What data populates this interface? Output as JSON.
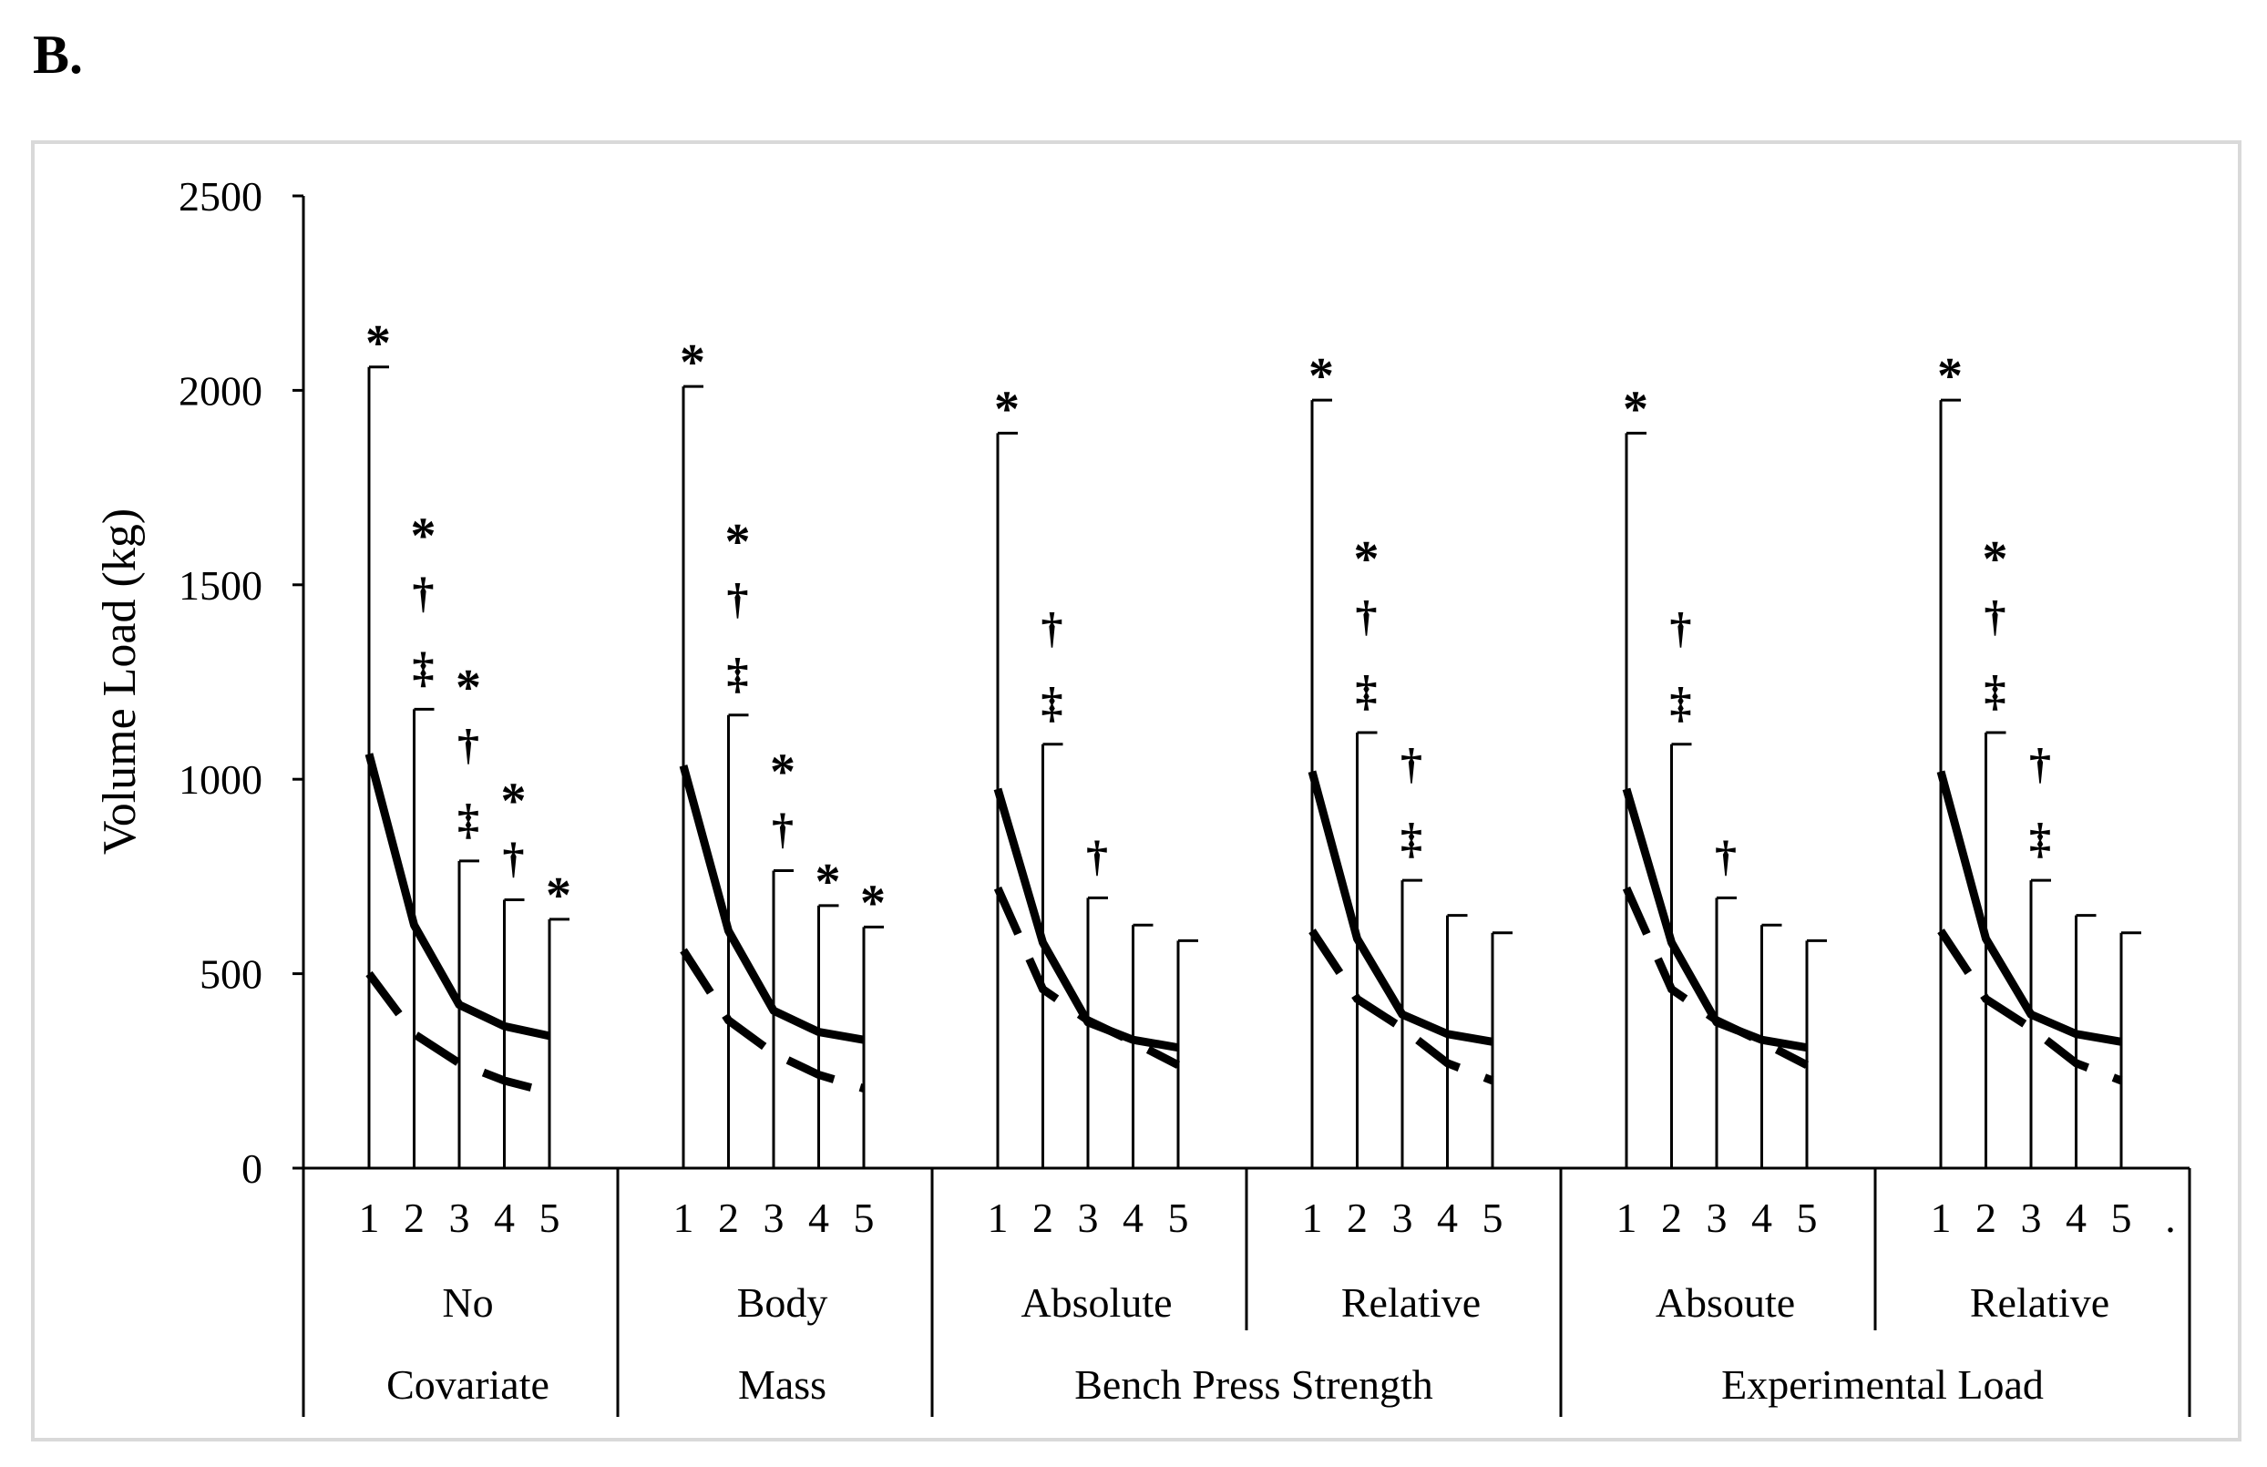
{
  "panel_label": "B.",
  "chart_data": {
    "type": "line",
    "title": "",
    "ylabel": "Volume Load (kg)",
    "xlabel": "",
    "ylim": [
      0,
      2500
    ],
    "yticks": [
      0,
      500,
      1000,
      1500,
      2000,
      2500
    ],
    "sets": [
      "1",
      "2",
      "3",
      "4",
      "5"
    ],
    "trailing_mark": ".",
    "groups": [
      {
        "label": "No",
        "solid": [
          1065,
          625,
          420,
          365,
          340
        ],
        "dashed": [
          500,
          345,
          270,
          225,
          195
        ],
        "sd_upper": [
          2060,
          1180,
          790,
          690,
          640
        ],
        "marks": [
          [
            "*"
          ],
          [
            "*",
            "†",
            "‡"
          ],
          [
            "*",
            "†",
            "‡"
          ],
          [
            "*",
            "†"
          ],
          [
            "*"
          ]
        ]
      },
      {
        "label": "Body",
        "solid": [
          1035,
          610,
          405,
          350,
          330
        ],
        "dashed": [
          560,
          380,
          295,
          240,
          205
        ],
        "sd_upper": [
          2010,
          1165,
          765,
          675,
          620
        ],
        "marks": [
          [
            "*"
          ],
          [
            "*",
            "†",
            "‡"
          ],
          [
            "*",
            "†"
          ],
          [
            "*"
          ],
          [
            "*"
          ]
        ]
      },
      {
        "label": "Absolute",
        "solid": [
          975,
          580,
          375,
          330,
          310
        ],
        "dashed": [
          720,
          460,
          380,
          325,
          265
        ],
        "sd_upper": [
          1890,
          1090,
          695,
          625,
          585
        ],
        "marks": [
          [
            "*"
          ],
          [
            "†",
            "‡"
          ],
          [
            "†"
          ],
          [],
          []
        ]
      },
      {
        "label": "Relative",
        "solid": [
          1020,
          590,
          395,
          345,
          325
        ],
        "dashed": [
          610,
          435,
          360,
          270,
          225
        ],
        "sd_upper": [
          1975,
          1120,
          740,
          650,
          605
        ],
        "marks": [
          [
            "*"
          ],
          [
            "*",
            "†",
            "‡"
          ],
          [
            "†",
            "‡"
          ],
          [],
          []
        ]
      },
      {
        "label": "Absoute",
        "solid": [
          975,
          580,
          375,
          330,
          310
        ],
        "dashed": [
          720,
          460,
          380,
          325,
          265
        ],
        "sd_upper": [
          1890,
          1090,
          695,
          625,
          585
        ],
        "marks": [
          [
            "*"
          ],
          [
            "†",
            "‡"
          ],
          [
            "†"
          ],
          [],
          []
        ]
      },
      {
        "label": "Relative",
        "solid": [
          1020,
          590,
          395,
          345,
          325
        ],
        "dashed": [
          610,
          435,
          360,
          270,
          225
        ],
        "sd_upper": [
          1975,
          1120,
          740,
          650,
          605
        ],
        "marks": [
          [
            "*"
          ],
          [
            "*",
            "†",
            "‡"
          ],
          [
            "†",
            "‡"
          ],
          [],
          []
        ]
      }
    ],
    "categories": [
      {
        "label": "Covariate",
        "groups": [
          0
        ]
      },
      {
        "label": "Mass",
        "groups": [
          1
        ]
      },
      {
        "label": "Bench Press Strength",
        "groups": [
          2,
          3
        ]
      },
      {
        "label": "Experimental Load",
        "groups": [
          4,
          5
        ]
      }
    ]
  }
}
